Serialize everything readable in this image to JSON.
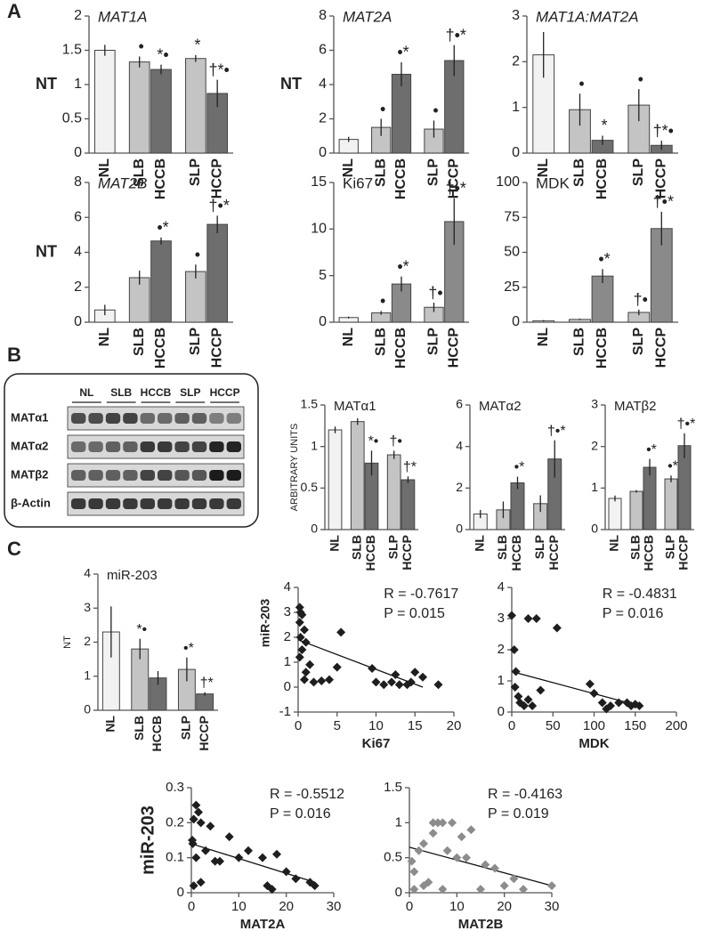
{
  "panel_labels": [
    "A",
    "B",
    "C"
  ],
  "blot": {
    "lanes": [
      "NL",
      "SLB",
      "HCCB",
      "SLP",
      "HCCP"
    ],
    "rows": [
      "MATα1",
      "MATα2",
      "MATβ2",
      "β-Actin"
    ]
  },
  "chart_data": [
    {
      "type": "bar",
      "title": "MAT1A",
      "title_style": "italic",
      "ylabel": "NT",
      "categories": [
        "NL",
        "SLB",
        "HCCB",
        "SLP",
        "HCCP"
      ],
      "values": [
        1.5,
        1.33,
        1.22,
        1.38,
        0.87
      ],
      "errors": [
        0.08,
        0.08,
        0.07,
        0.05,
        0.2
      ],
      "colors": [
        "#f2f2f2",
        "#c4c4c4",
        "#6e6e6e",
        "#c4c4c4",
        "#6e6e6e"
      ],
      "annotations": [
        null,
        "•",
        "*•",
        "*",
        "†*•"
      ],
      "ylim": [
        0,
        2
      ],
      "yticks": [
        0,
        0.5,
        1,
        1.5,
        2
      ]
    },
    {
      "type": "bar",
      "title": "MAT2A",
      "title_style": "italic",
      "ylabel": "NT",
      "categories": [
        "NL",
        "SLB",
        "HCCB",
        "SLP",
        "HCCP"
      ],
      "values": [
        0.8,
        1.5,
        4.6,
        1.4,
        5.4
      ],
      "errors": [
        0.15,
        0.5,
        0.7,
        0.5,
        0.9
      ],
      "colors": [
        "#f2f2f2",
        "#c4c4c4",
        "#6e6e6e",
        "#c4c4c4",
        "#6e6e6e"
      ],
      "annotations": [
        null,
        "•",
        "•*",
        "•",
        "†•*"
      ],
      "ylim": [
        0,
        8
      ],
      "yticks": [
        0,
        2,
        4,
        6,
        8
      ]
    },
    {
      "type": "bar",
      "title": "MAT1A:MAT2A",
      "title_style": "italic",
      "categories": [
        "NL",
        "SLB",
        "HCCB",
        "SLP",
        "HCCP"
      ],
      "values": [
        2.15,
        0.95,
        0.28,
        1.05,
        0.17
      ],
      "errors": [
        0.5,
        0.35,
        0.1,
        0.35,
        0.1
      ],
      "colors": [
        "#f2f2f2",
        "#c4c4c4",
        "#6e6e6e",
        "#c4c4c4",
        "#6e6e6e"
      ],
      "annotations": [
        null,
        "•",
        "*",
        "•",
        "†*•"
      ],
      "ylim": [
        0,
        3
      ],
      "yticks": [
        0,
        1,
        2,
        3
      ]
    },
    {
      "type": "bar",
      "title": "MAT2B",
      "title_style": "italic",
      "ylabel": "NT",
      "categories": [
        "NL",
        "SLB",
        "HCCB",
        "SLP",
        "HCCP"
      ],
      "values": [
        0.7,
        2.55,
        4.65,
        2.9,
        5.6
      ],
      "errors": [
        0.3,
        0.4,
        0.2,
        0.4,
        0.5
      ],
      "colors": [
        "#f2f2f2",
        "#c4c4c4",
        "#6e6e6e",
        "#c4c4c4",
        "#6e6e6e"
      ],
      "annotations": [
        null,
        null,
        "•*",
        "•",
        "†•*"
      ],
      "ylim": [
        0,
        8
      ],
      "yticks": [
        0,
        2,
        4,
        6,
        8
      ]
    },
    {
      "type": "bar",
      "title": "Ki67",
      "title_style": "normal",
      "categories": [
        "NL",
        "SLB",
        "HCCB",
        "SLP",
        "HCCP"
      ],
      "values": [
        0.5,
        1.0,
        4.1,
        1.6,
        10.8
      ],
      "errors": [
        0.1,
        0.2,
        0.8,
        0.5,
        2.5
      ],
      "colors": [
        "#f2f2f2",
        "#c4c4c4",
        "#8a8a8a",
        "#c4c4c4",
        "#8a8a8a"
      ],
      "annotations": [
        null,
        "•",
        "•*",
        "†•",
        "†•*"
      ],
      "ylim": [
        0,
        15
      ],
      "yticks": [
        0,
        5,
        10,
        15
      ]
    },
    {
      "type": "bar",
      "title": "MDK",
      "title_style": "normal",
      "categories": [
        "NL",
        "SLB",
        "HCCB",
        "SLP",
        "HCCP"
      ],
      "values": [
        1,
        2,
        33,
        7,
        67
      ],
      "errors": [
        0.5,
        0.5,
        5,
        2,
        12
      ],
      "colors": [
        "#f2f2f2",
        "#c4c4c4",
        "#8a8a8a",
        "#c4c4c4",
        "#8a8a8a"
      ],
      "annotations": [
        null,
        null,
        "•*",
        "†•",
        "†•*"
      ],
      "ylim": [
        0,
        100
      ],
      "yticks": [
        0,
        25,
        50,
        75,
        100
      ]
    },
    {
      "type": "bar",
      "title": "MATα1",
      "title_style": "normal",
      "ylabel": "ARBITRARY UNITS",
      "categories": [
        "NL",
        "SLB",
        "HCCB",
        "SLP",
        "HCCP"
      ],
      "values": [
        1.2,
        1.3,
        0.8,
        0.9,
        0.6
      ],
      "errors": [
        0.04,
        0.04,
        0.15,
        0.05,
        0.04
      ],
      "colors": [
        "#f2f2f2",
        "#c4c4c4",
        "#6e6e6e",
        "#c4c4c4",
        "#6e6e6e"
      ],
      "annotations": [
        null,
        null,
        "*•",
        "†•",
        "†*"
      ],
      "ylim": [
        0,
        1.5
      ],
      "yticks": [
        0,
        0.5,
        1,
        1.5
      ]
    },
    {
      "type": "bar",
      "title": "MATα2",
      "title_style": "normal",
      "categories": [
        "NL",
        "SLB",
        "HCCB",
        "SLP",
        "HCCP"
      ],
      "values": [
        0.75,
        0.95,
        2.25,
        1.25,
        3.4
      ],
      "errors": [
        0.2,
        0.4,
        0.3,
        0.4,
        0.9
      ],
      "colors": [
        "#f2f2f2",
        "#c4c4c4",
        "#6e6e6e",
        "#c4c4c4",
        "#6e6e6e"
      ],
      "annotations": [
        null,
        null,
        "•*",
        null,
        "†•*"
      ],
      "ylim": [
        0,
        6
      ],
      "yticks": [
        0,
        2,
        4,
        6
      ]
    },
    {
      "type": "bar",
      "title": "MATβ2",
      "title_style": "normal",
      "categories": [
        "NL",
        "SLB",
        "HCCB",
        "SLP",
        "HCCP"
      ],
      "values": [
        0.75,
        0.92,
        1.5,
        1.22,
        2.02
      ],
      "errors": [
        0.07,
        0.03,
        0.2,
        0.08,
        0.3
      ],
      "colors": [
        "#f2f2f2",
        "#c4c4c4",
        "#6e6e6e",
        "#c4c4c4",
        "#6e6e6e"
      ],
      "annotations": [
        null,
        null,
        "•*",
        "•*",
        "†•*"
      ],
      "ylim": [
        0,
        3
      ],
      "yticks": [
        0,
        1,
        2,
        3
      ]
    },
    {
      "type": "bar",
      "title": "miR-203",
      "title_style": "normal",
      "ylabel": "NT",
      "categories": [
        "NL",
        "SLB",
        "HCCB",
        "SLP",
        "HCCP"
      ],
      "values": [
        2.3,
        1.8,
        0.95,
        1.2,
        0.48
      ],
      "errors": [
        0.75,
        0.3,
        0.2,
        0.35,
        0.05
      ],
      "colors": [
        "#f2f2f2",
        "#c4c4c4",
        "#6e6e6e",
        "#c4c4c4",
        "#6e6e6e"
      ],
      "annotations": [
        null,
        "*•",
        null,
        "•*",
        "†*"
      ],
      "ylim": [
        0,
        4
      ],
      "yticks": [
        0,
        1,
        2,
        3,
        4
      ]
    },
    {
      "type": "scatter",
      "ylabel": "miR-203",
      "xlabel": "Ki67",
      "stats": [
        "R = -0.7617",
        "P = 0.015"
      ],
      "color": "#1e1e1e",
      "x": [
        0.2,
        0.3,
        0.5,
        0.2,
        0.8,
        0.3,
        1,
        0.5,
        0.2,
        1.5,
        0.8,
        2,
        3,
        5.5,
        5,
        4,
        9.5,
        10,
        11,
        12,
        12.5,
        13,
        14,
        15,
        16,
        18,
        14.5,
        1
      ],
      "y": [
        3.2,
        3.0,
        2.9,
        2.6,
        2.3,
        2.0,
        1.8,
        1.5,
        1.2,
        0.9,
        0.3,
        0.2,
        0.25,
        2.2,
        0.8,
        0.3,
        0.75,
        0.2,
        0.1,
        0.2,
        0.5,
        0.1,
        0.1,
        0.6,
        0.4,
        0.1,
        0.2,
        0.6
      ],
      "trendline": {
        "x": [
          0,
          16
        ],
        "y": [
          1.9,
          0
        ]
      },
      "xlim": [
        0,
        20
      ],
      "xticks": [
        0,
        5,
        10,
        15,
        20
      ],
      "ylim": [
        -1,
        4
      ],
      "yticks": [
        -1,
        0,
        1,
        2,
        3,
        4
      ]
    },
    {
      "type": "scatter",
      "xlabel": "MDK",
      "stats": [
        "R = -0.4831",
        "P = 0.016"
      ],
      "color": "#1e1e1e",
      "x": [
        0,
        3,
        5,
        4,
        8,
        10,
        15,
        20,
        25,
        20,
        30,
        55,
        35,
        95,
        100,
        110,
        120,
        130,
        140,
        145,
        150,
        155,
        115
      ],
      "y": [
        3.1,
        2.0,
        1.3,
        0.8,
        0.5,
        0.3,
        0.2,
        0.4,
        0.2,
        3.0,
        3.0,
        2.7,
        0.7,
        0.9,
        0.6,
        0.3,
        0.2,
        0.3,
        0.3,
        0.2,
        0.25,
        0.2,
        0.1
      ],
      "trendline": {
        "x": [
          0,
          155
        ],
        "y": [
          1.3,
          0.2
        ]
      },
      "xlim": [
        0,
        200
      ],
      "xticks": [
        0,
        50,
        100,
        150,
        200
      ],
      "ylim": [
        0,
        4
      ],
      "yticks": [
        0,
        1,
        2,
        3,
        4
      ]
    },
    {
      "type": "scatter",
      "ylabel": "miR-203",
      "xlabel": "MAT2A",
      "stats": [
        "R = -0.5512",
        "P = 0.016"
      ],
      "color": "#1e1e1e",
      "x": [
        0.5,
        1,
        1.5,
        0.3,
        0.2,
        2,
        1,
        0.5,
        2,
        3,
        4,
        5,
        6,
        8,
        10,
        12,
        15,
        18,
        16,
        17,
        20,
        22,
        25,
        26
      ],
      "y": [
        0.21,
        0.25,
        0.23,
        0.14,
        0.15,
        0.2,
        0.1,
        0.02,
        0.03,
        0.12,
        0.19,
        0.09,
        0.09,
        0.16,
        0.1,
        0.12,
        0.1,
        0.11,
        0.02,
        0.01,
        0.06,
        0.04,
        0.03,
        0.02
      ],
      "trendline": {
        "x": [
          0,
          26
        ],
        "y": [
          0.14,
          0.03
        ]
      },
      "xlim": [
        0,
        30
      ],
      "xticks": [
        0,
        10,
        20,
        30
      ],
      "ylim": [
        0,
        0.3
      ],
      "yticks": [
        0,
        0.1,
        0.2,
        0.3
      ]
    },
    {
      "type": "scatter",
      "xlabel": "MAT2B",
      "stats": [
        "R = -0.4163",
        "P = 0.019"
      ],
      "color": "#8c8c8c",
      "x": [
        0.5,
        1,
        1,
        2,
        3,
        3,
        4,
        5,
        5,
        6,
        7,
        8,
        9,
        10,
        11,
        12,
        13,
        15,
        16,
        18,
        20,
        22,
        24,
        30,
        7
      ],
      "y": [
        0.45,
        0.3,
        0.05,
        0.6,
        0.7,
        0.1,
        0.15,
        0.85,
        1.0,
        1.0,
        1.0,
        0.6,
        1.0,
        0.5,
        0.8,
        0.5,
        0.9,
        0.05,
        0.4,
        0.35,
        0.1,
        0.2,
        0.05,
        0.1,
        0.05
      ],
      "trendline": {
        "x": [
          0,
          30
        ],
        "y": [
          0.65,
          0.1
        ]
      },
      "xlim": [
        0,
        30
      ],
      "xticks": [
        0,
        10,
        20,
        30
      ],
      "ylim": [
        0,
        1.5
      ],
      "yticks": [
        0,
        0.5,
        1,
        1.5
      ]
    }
  ]
}
